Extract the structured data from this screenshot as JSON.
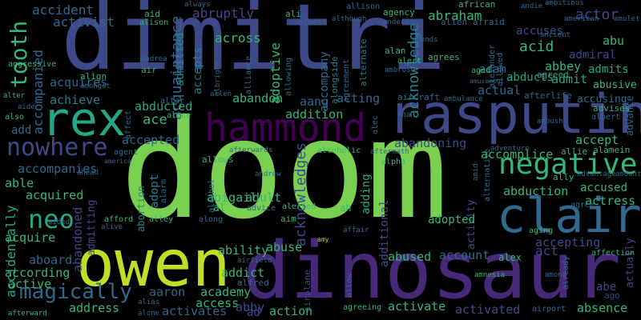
{
  "colors": {
    "background": "#000000",
    "lime": "#7ad151",
    "yellow": "#bddf26",
    "purple": "#482878",
    "indigo": "#3e4989",
    "blue": "#31688e",
    "teal": "#26828e",
    "green": "#22a884",
    "mint": "#35b779",
    "dark": "#440154"
  },
  "words": {
    "doom": "doom",
    "dimitri": "dimitri",
    "dinosaur": "dinosaur",
    "owen": "owen",
    "rasputin": "rasputin",
    "claire": "claire",
    "rex": "rex",
    "hammond": "hammond",
    "negative": "negative",
    "nowhere": "nowhere",
    "tooth": "tooth",
    "neo": "neo",
    "magically": "magically",
    "acknowledge": "acknowledge",
    "acknowledges": "acknowledges",
    "acquaintance": "acquaintance",
    "accompanied": "accompanied",
    "accidentally": "accidentally",
    "abandoned": "abandoned",
    "additional": "additional",
    "airplane": "airplane",
    "adoptive": "adoptive",
    "abruptly": "abruptly",
    "accident": "accident",
    "activist": "activist",
    "across": "across",
    "admitted": "admitted",
    "accepts": "accepts",
    "abraham": "abraham",
    "accuses": "accuses",
    "actor": "actor",
    "acid": "acid",
    "abu": "abu",
    "admiral": "admiral",
    "abbey": "abbey",
    "admits": "admits",
    "admit": "admit",
    "abusive": "abusive",
    "accusing": "accusing",
    "adam": "adam",
    "abducts": "abducts",
    "agreed": "agreed",
    "advises": "advises",
    "advance": "advance",
    "achieve": "achieve",
    "acquires": "acquires",
    "abducted": "abducted",
    "abandon": "abandon",
    "aang": "aang",
    "acting": "acting",
    "actual": "actual",
    "afterlife": "afterlife",
    "albert": "albert",
    "ace": "ace",
    "addition": "addition",
    "add": "add",
    "accepted": "accepted",
    "accompanies": "accompanies",
    "abandoning": "abandoning",
    "accomplice": "accomplice",
    "accept": "accept",
    "able": "able",
    "acquired": "acquired",
    "acquire": "acquire",
    "adopt": "adopt",
    "abigail": "abigail",
    "abortion": "abortion",
    "adult": "adult",
    "adding": "adding",
    "adopted": "adopted",
    "activity": "activity",
    "abduction": "abduction",
    "accused": "accused",
    "actress": "actress",
    "accepting": "accepting",
    "ability": "ability",
    "abuse": "abuse",
    "aboard": "aboard",
    "abused": "abused",
    "account": "account",
    "act": "act",
    "alex": "alex",
    "according": "according",
    "active": "active",
    "addict": "addict",
    "aaron": "aaron",
    "academy": "academy",
    "access": "access",
    "address": "address",
    "activates": "activates",
    "abby": "abby",
    "ad": "ad",
    "action": "action",
    "activate": "activate",
    "activated": "activated",
    "absence": "absence",
    "actually": "actually",
    "accompany": "accompany",
    "admitting": "admitting",
    "abe": "abe",
    "ago": "ago",
    "al": "al",
    "alfred": "alfred",
    "ah": "ah",
    "aim": "aim",
    "alerted": "alerted",
    "alcoholic": "alcoholic",
    "aircraft": "aircraft",
    "alan": "alan",
    "alert": "alert",
    "agrees": "agrees",
    "aged": "aged",
    "alien": "alien",
    "afraid": "afraid",
    "agency": "agency",
    "african": "african",
    "allison": "allison",
    "always": "always",
    "aid": "aid",
    "alison": "alison",
    "ali": "ali",
    "almost": "almost",
    "although": "although",
    "anderson": "anderson",
    "andie": "andie",
    "ambitious": "ambitious",
    "american": "american",
    "amulet": "amulet",
    "ancient": "ancient",
    "amends": "amends",
    "ambrose": "ambrose",
    "agreement": "agreement",
    "alongside": "alongside",
    "alternate": "alternate",
    "allowing": "allowing",
    "alliance": "alliance",
    "albright": "albright",
    "align": "align",
    "amongst": "amongst",
    "andrea": "andrea",
    "air": "air",
    "aggressive": "aggressive",
    "alter": "alter",
    "aide": "aide",
    "also": "also",
    "affect": "affect",
    "altar": "altar",
    "allen": "allen",
    "alice": "alice",
    "alec": "alec",
    "ana": "ana",
    "ambulance": "ambulance",
    "amusement": "amusement",
    "alexander": "alexander",
    "allowed": "allowed",
    "ambush": "ambush",
    "alamein": "alamein",
    "allie": "allie",
    "adventure": "adventure",
    "aftermath": "aftermath",
    "alpha": "alpha",
    "afterwards": "afterwards",
    "allows": "allows",
    "agent": "agent",
    "america": "america",
    "ahead": "ahead",
    "alcohol": "alcohol",
    "andrew": "andrew",
    "advice": "advice",
    "alley": "alley",
    "alarm": "alarm",
    "alive": "alive",
    "aided": "aided",
    "afford": "afford",
    "along": "along",
    "airfield": "airfield",
    "alias": "alias",
    "alone": "alone",
    "afterward": "afterward",
    "affair": "affair",
    "amy": "amy",
    "alternative": "alternative",
    "ally": "ally",
    "amid": "amid",
    "agree": "agree",
    "advantage": "advantage",
    "amount": "amount",
    "aging": "aging",
    "affection": "affection",
    "amnesia": "amnesia",
    "allow": "allow",
    "among": "among",
    "already": "already",
    "agreeing": "agreeing",
    "airport": "airport"
  }
}
